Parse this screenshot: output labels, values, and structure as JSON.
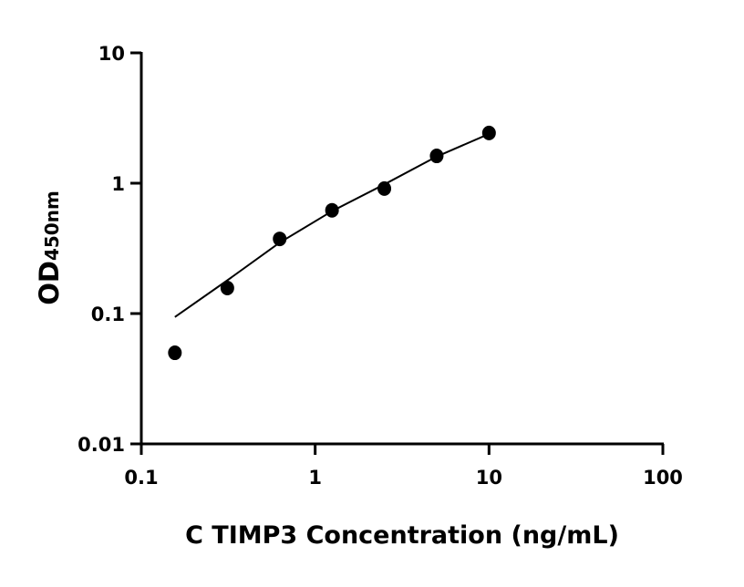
{
  "chart_data": {
    "type": "scatter",
    "xlabel": "C TIMP3 Concentration (ng/mL)",
    "ylabel": "OD",
    "ylabel_subscript": "450nm",
    "x_scale": "log",
    "y_scale": "log",
    "xlim": [
      0.1,
      100
    ],
    "ylim": [
      0.01,
      10
    ],
    "x_ticks": [
      "0.1",
      "1",
      "10",
      "100"
    ],
    "y_ticks": [
      "0.01",
      "0.1",
      "1",
      "10"
    ],
    "grid": false,
    "points": {
      "x": [
        0.156,
        0.3125,
        0.625,
        1.25,
        2.5,
        5,
        10
      ],
      "y": [
        0.05,
        0.157,
        0.374,
        0.62,
        0.91,
        1.62,
        2.43
      ]
    },
    "fit_curve": {
      "x": [
        0.156,
        0.3125,
        0.625,
        1.25,
        2.5,
        5,
        10
      ],
      "y": [
        0.094,
        0.18,
        0.35,
        0.61,
        0.98,
        1.6,
        2.39
      ]
    },
    "colors": {
      "points": "#000000",
      "curve": "#000000"
    }
  }
}
